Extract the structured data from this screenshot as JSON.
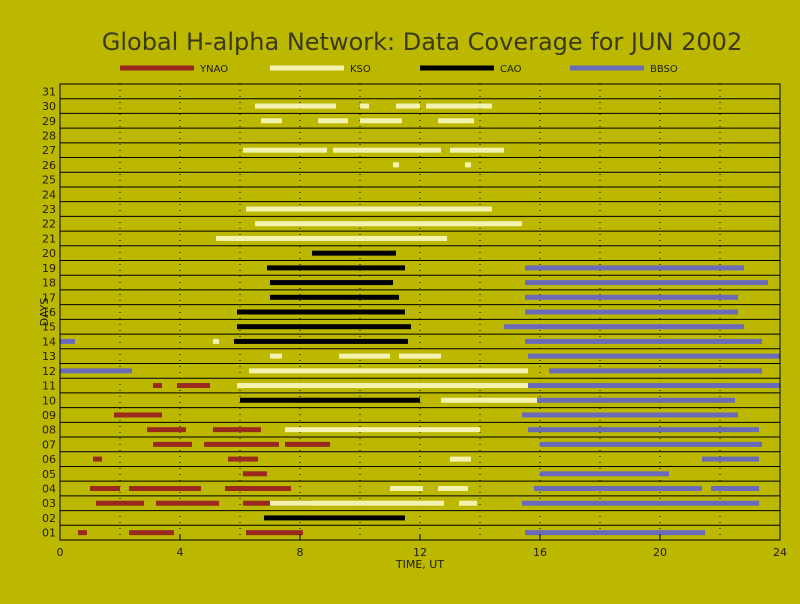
{
  "colors": {
    "background": "#bcb800",
    "YNAO": "#9a2a20",
    "KSO": "#f4f2b0",
    "CAO": "#000000",
    "BBSO": "#6a6ab8",
    "frame": "#000000"
  },
  "chart_data": {
    "type": "timeline",
    "title": "Global H-alpha Network: Data Coverage for JUN 2002",
    "xlabel": "TIME, UT",
    "ylabel": "DAYS",
    "xlim": [
      0,
      24
    ],
    "ylim": [
      0.5,
      31.5
    ],
    "xticks": [
      0,
      4,
      8,
      12,
      16,
      20,
      24
    ],
    "yticks": [
      "01",
      "02",
      "03",
      "04",
      "05",
      "06",
      "07",
      "08",
      "09",
      "10",
      "11",
      "12",
      "13",
      "14",
      "15",
      "16",
      "17",
      "18",
      "19",
      "20",
      "21",
      "22",
      "23",
      "24",
      "25",
      "26",
      "27",
      "28",
      "29",
      "30",
      "31"
    ],
    "grid": true,
    "legend": [
      "YNAO",
      "KSO",
      "CAO",
      "BBSO"
    ],
    "series": [
      {
        "name": "YNAO",
        "segments": [
          {
            "day": 1,
            "start": 0.6,
            "end": 0.9
          },
          {
            "day": 1,
            "start": 2.3,
            "end": 3.8
          },
          {
            "day": 1,
            "start": 6.2,
            "end": 8.1
          },
          {
            "day": 3,
            "start": 1.2,
            "end": 2.8
          },
          {
            "day": 3,
            "start": 3.2,
            "end": 5.3
          },
          {
            "day": 3,
            "start": 6.1,
            "end": 8.4
          },
          {
            "day": 4,
            "start": 1.0,
            "end": 2.0
          },
          {
            "day": 4,
            "start": 2.3,
            "end": 4.7
          },
          {
            "day": 4,
            "start": 5.5,
            "end": 7.7
          },
          {
            "day": 5,
            "start": 6.1,
            "end": 6.9
          },
          {
            "day": 6,
            "start": 1.1,
            "end": 1.4
          },
          {
            "day": 6,
            "start": 5.6,
            "end": 6.6
          },
          {
            "day": 7,
            "start": 3.1,
            "end": 4.4
          },
          {
            "day": 7,
            "start": 4.8,
            "end": 7.3
          },
          {
            "day": 7,
            "start": 7.5,
            "end": 9.0
          },
          {
            "day": 8,
            "start": 2.9,
            "end": 4.2
          },
          {
            "day": 8,
            "start": 5.1,
            "end": 6.7
          },
          {
            "day": 9,
            "start": 1.8,
            "end": 3.4
          },
          {
            "day": 10,
            "start": 8.0,
            "end": 8.6
          },
          {
            "day": 11,
            "start": 3.1,
            "end": 3.4
          },
          {
            "day": 11,
            "start": 3.9,
            "end": 5.0
          }
        ]
      },
      {
        "name": "KSO",
        "segments": [
          {
            "day": 2,
            "start": 6.9,
            "end": 8.3
          },
          {
            "day": 3,
            "start": 7.0,
            "end": 12.8
          },
          {
            "day": 3,
            "start": 13.3,
            "end": 13.9
          },
          {
            "day": 4,
            "start": 11.0,
            "end": 12.1
          },
          {
            "day": 4,
            "start": 12.6,
            "end": 13.6
          },
          {
            "day": 6,
            "start": 13.0,
            "end": 13.7
          },
          {
            "day": 8,
            "start": 7.5,
            "end": 14.0
          },
          {
            "day": 10,
            "start": 12.7,
            "end": 15.9
          },
          {
            "day": 11,
            "start": 5.9,
            "end": 15.8
          },
          {
            "day": 12,
            "start": 6.3,
            "end": 15.6
          },
          {
            "day": 13,
            "start": 7.0,
            "end": 7.4
          },
          {
            "day": 13,
            "start": 9.3,
            "end": 11.0
          },
          {
            "day": 13,
            "start": 11.3,
            "end": 12.7
          },
          {
            "day": 14,
            "start": 5.1,
            "end": 5.3
          },
          {
            "day": 21,
            "start": 5.2,
            "end": 12.9
          },
          {
            "day": 22,
            "start": 6.5,
            "end": 15.4
          },
          {
            "day": 23,
            "start": 6.2,
            "end": 14.4
          },
          {
            "day": 26,
            "start": 11.1,
            "end": 11.3
          },
          {
            "day": 26,
            "start": 13.5,
            "end": 13.7
          },
          {
            "day": 27,
            "start": 6.1,
            "end": 8.9
          },
          {
            "day": 27,
            "start": 9.1,
            "end": 12.7
          },
          {
            "day": 27,
            "start": 13.0,
            "end": 14.8
          },
          {
            "day": 29,
            "start": 6.7,
            "end": 7.4
          },
          {
            "day": 29,
            "start": 8.6,
            "end": 9.6
          },
          {
            "day": 29,
            "start": 10.0,
            "end": 11.4
          },
          {
            "day": 29,
            "start": 12.6,
            "end": 13.8
          },
          {
            "day": 30,
            "start": 6.5,
            "end": 9.2
          },
          {
            "day": 30,
            "start": 10.0,
            "end": 10.3
          },
          {
            "day": 30,
            "start": 11.2,
            "end": 12.0
          },
          {
            "day": 30,
            "start": 12.2,
            "end": 14.4
          }
        ]
      },
      {
        "name": "CAO",
        "segments": [
          {
            "day": 2,
            "start": 6.8,
            "end": 11.5
          },
          {
            "day": 10,
            "start": 6.0,
            "end": 12.0
          },
          {
            "day": 14,
            "start": 5.8,
            "end": 11.6
          },
          {
            "day": 15,
            "start": 5.9,
            "end": 11.7
          },
          {
            "day": 16,
            "start": 5.9,
            "end": 11.5
          },
          {
            "day": 17,
            "start": 7.0,
            "end": 11.3
          },
          {
            "day": 18,
            "start": 7.0,
            "end": 11.1
          },
          {
            "day": 19,
            "start": 6.9,
            "end": 11.5
          },
          {
            "day": 20,
            "start": 8.4,
            "end": 11.2
          }
        ]
      },
      {
        "name": "BBSO",
        "segments": [
          {
            "day": 1,
            "start": 15.5,
            "end": 21.5
          },
          {
            "day": 3,
            "start": 15.4,
            "end": 23.3
          },
          {
            "day": 4,
            "start": 15.8,
            "end": 21.4
          },
          {
            "day": 4,
            "start": 21.7,
            "end": 23.3
          },
          {
            "day": 5,
            "start": 16.0,
            "end": 20.3
          },
          {
            "day": 6,
            "start": 21.4,
            "end": 23.3
          },
          {
            "day": 7,
            "start": 16.0,
            "end": 23.4
          },
          {
            "day": 8,
            "start": 15.6,
            "end": 23.3
          },
          {
            "day": 9,
            "start": 15.4,
            "end": 22.6
          },
          {
            "day": 10,
            "start": 15.9,
            "end": 22.5
          },
          {
            "day": 11,
            "start": 15.6,
            "end": 24.0
          },
          {
            "day": 12,
            "start": 0.0,
            "end": 2.4
          },
          {
            "day": 12,
            "start": 16.3,
            "end": 23.4
          },
          {
            "day": 13,
            "start": 15.6,
            "end": 24.0
          },
          {
            "day": 14,
            "start": 0.0,
            "end": 0.5
          },
          {
            "day": 14,
            "start": 15.5,
            "end": 23.4
          },
          {
            "day": 15,
            "start": 14.8,
            "end": 22.8
          },
          {
            "day": 16,
            "start": 15.5,
            "end": 22.6
          },
          {
            "day": 17,
            "start": 15.5,
            "end": 22.6
          },
          {
            "day": 18,
            "start": 15.5,
            "end": 23.6
          },
          {
            "day": 19,
            "start": 15.5,
            "end": 22.8
          }
        ]
      }
    ]
  }
}
